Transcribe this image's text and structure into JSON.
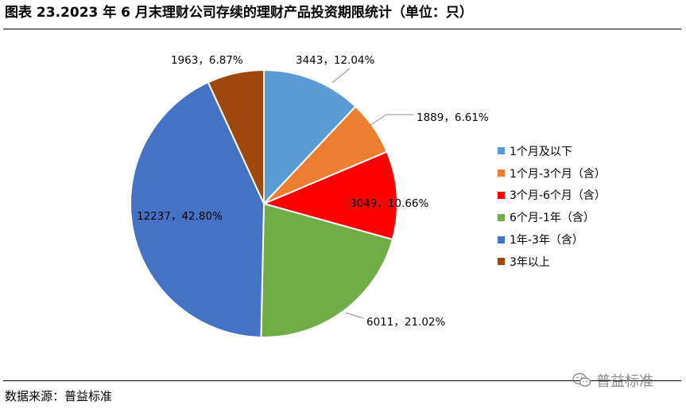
{
  "header": {
    "title": "图表 23.2023 年 6 月末理财公司存续的理财产品投资期限统计（单位：只）"
  },
  "footer": {
    "source": "数据来源：普益标准",
    "watermark": "普益标准",
    "watermark_icon": "wechat-icon"
  },
  "chart_data": {
    "type": "pie",
    "title": "图表 23.2023 年 6 月末理财公司存续的理财产品投资期限统计（单位：只）",
    "unit": "只",
    "legend_position": "right",
    "start_angle_deg": 0,
    "direction": "clockwise",
    "slices": [
      {
        "name": "1个月及以下",
        "value": 3443,
        "percent": "12.04%",
        "label": "3443，12.04%",
        "color": "#5B9BD5"
      },
      {
        "name": "1个月-3个月（含）",
        "value": 1889,
        "percent": "6.61%",
        "label": "1889，6.61%",
        "color": "#ED7D31"
      },
      {
        "name": "3个月-6个月（含）",
        "value": 3049,
        "percent": "10.66%",
        "label": "3049，10.66%",
        "color": "#FF0000"
      },
      {
        "name": "6个月-1年（含）",
        "value": 6011,
        "percent": "21.02%",
        "label": "6011，21.02%",
        "color": "#70AD47"
      },
      {
        "name": "1年-3年（含）",
        "value": 12237,
        "percent": "42.80%",
        "label": "12237，42.80%",
        "color": "#4472C4"
      },
      {
        "name": "3年以上",
        "value": 1963,
        "percent": "6.87%",
        "label": "1963，6.87%",
        "color": "#9E480E"
      }
    ]
  }
}
